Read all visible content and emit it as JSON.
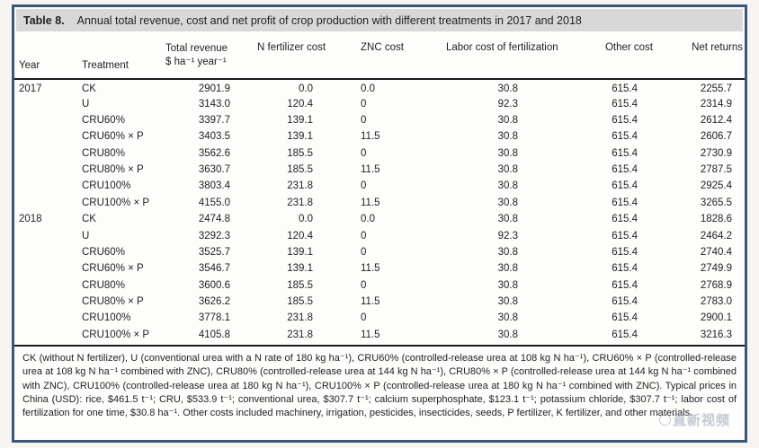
{
  "title": {
    "label": "Table 8.",
    "caption": "Annual total revenue, cost and net profit of crop production with different treatments in 2017 and 2018"
  },
  "table": {
    "columns": {
      "year": "Year",
      "treatment": "Treatment",
      "total_revenue": "Total revenue",
      "unit_line": "$ ha⁻¹ year⁻¹",
      "n_fertilizer_cost": "N fertilizer cost",
      "znc_cost": "ZNC cost",
      "labor_cost": "Labor cost of fertilization",
      "other_cost": "Other cost",
      "net_returns": "Net returns"
    },
    "rows": [
      {
        "year": "2017",
        "treatment": "CK",
        "total_revenue": "2901.9",
        "n_fertilizer_cost": "0.0",
        "znc_cost": "0.0",
        "labor_cost": "30.8",
        "other_cost": "615.4",
        "net_returns": "2255.7"
      },
      {
        "year": "",
        "treatment": "U",
        "total_revenue": "3143.0",
        "n_fertilizer_cost": "120.4",
        "znc_cost": "0",
        "labor_cost": "92.3",
        "other_cost": "615.4",
        "net_returns": "2314.9"
      },
      {
        "year": "",
        "treatment": "CRU60%",
        "total_revenue": "3397.7",
        "n_fertilizer_cost": "139.1",
        "znc_cost": "0",
        "labor_cost": "30.8",
        "other_cost": "615.4",
        "net_returns": "2612.4"
      },
      {
        "year": "",
        "treatment": "CRU60% × P",
        "total_revenue": "3403.5",
        "n_fertilizer_cost": "139.1",
        "znc_cost": "11.5",
        "labor_cost": "30.8",
        "other_cost": "615.4",
        "net_returns": "2606.7"
      },
      {
        "year": "",
        "treatment": "CRU80%",
        "total_revenue": "3562.6",
        "n_fertilizer_cost": "185.5",
        "znc_cost": "0",
        "labor_cost": "30.8",
        "other_cost": "615.4",
        "net_returns": "2730.9"
      },
      {
        "year": "",
        "treatment": "CRU80% × P",
        "total_revenue": "3630.7",
        "n_fertilizer_cost": "185.5",
        "znc_cost": "11.5",
        "labor_cost": "30.8",
        "other_cost": "615.4",
        "net_returns": "2787.5"
      },
      {
        "year": "",
        "treatment": "CRU100%",
        "total_revenue": "3803.4",
        "n_fertilizer_cost": "231.8",
        "znc_cost": "0",
        "labor_cost": "30.8",
        "other_cost": "615.4",
        "net_returns": "2925.4"
      },
      {
        "year": "",
        "treatment": "CRU100% × P",
        "total_revenue": "4155.0",
        "n_fertilizer_cost": "231.8",
        "znc_cost": "11.5",
        "labor_cost": "30.8",
        "other_cost": "615.4",
        "net_returns": "3265.5"
      },
      {
        "year": "2018",
        "treatment": "CK",
        "total_revenue": "2474.8",
        "n_fertilizer_cost": "0.0",
        "znc_cost": "0.0",
        "labor_cost": "30.8",
        "other_cost": "615.4",
        "net_returns": "1828.6"
      },
      {
        "year": "",
        "treatment": "U",
        "total_revenue": "3292.3",
        "n_fertilizer_cost": "120.4",
        "znc_cost": "0",
        "labor_cost": "92.3",
        "other_cost": "615.4",
        "net_returns": "2464.2"
      },
      {
        "year": "",
        "treatment": "CRU60%",
        "total_revenue": "3525.7",
        "n_fertilizer_cost": "139.1",
        "znc_cost": "0",
        "labor_cost": "30.8",
        "other_cost": "615.4",
        "net_returns": "2740.4"
      },
      {
        "year": "",
        "treatment": "CRU60% × P",
        "total_revenue": "3546.7",
        "n_fertilizer_cost": "139.1",
        "znc_cost": "11.5",
        "labor_cost": "30.8",
        "other_cost": "615.4",
        "net_returns": "2749.9"
      },
      {
        "year": "",
        "treatment": "CRU80%",
        "total_revenue": "3600.6",
        "n_fertilizer_cost": "185.5",
        "znc_cost": "0",
        "labor_cost": "30.8",
        "other_cost": "615.4",
        "net_returns": "2768.9"
      },
      {
        "year": "",
        "treatment": "CRU80% × P",
        "total_revenue": "3626.2",
        "n_fertilizer_cost": "185.5",
        "znc_cost": "11.5",
        "labor_cost": "30.8",
        "other_cost": "615.4",
        "net_returns": "2783.0"
      },
      {
        "year": "",
        "treatment": "CRU100%",
        "total_revenue": "3778.1",
        "n_fertilizer_cost": "231.8",
        "znc_cost": "0",
        "labor_cost": "30.8",
        "other_cost": "615.4",
        "net_returns": "2900.1"
      },
      {
        "year": "",
        "treatment": "CRU100% × P",
        "total_revenue": "4105.8",
        "n_fertilizer_cost": "231.8",
        "znc_cost": "11.5",
        "labor_cost": "30.8",
        "other_cost": "615.4",
        "net_returns": "3216.3"
      }
    ]
  },
  "footnote": "CK (without N fertilizer), U (conventional urea with a N rate of 180 kg ha⁻¹), CRU60% (controlled-release urea at 108 kg N ha⁻¹), CRU60% × P (controlled-release urea at 108 kg N ha⁻¹ combined with ZNC), CRU80% (controlled-release urea at 144 kg N ha⁻¹), CRU80% × P (controlled-release urea at 144 kg N ha⁻¹ combined with ZNC), CRU100% (controlled-release urea at 180 kg N ha⁻¹), CRU100% × P (controlled-release urea at 180 kg N ha⁻¹ combined with ZNC). Typical prices in China (USD): rice, $461.5 t⁻¹; CRU, $533.9 t⁻¹; conventional urea, $307.7 t⁻¹; calcium superphosphate, $123.1 t⁻¹; potassium chloride, $307.7 t⁻¹; labor cost of fertilization for one time, $30.8 ha⁻¹. Other costs included machinery, irrigation, pesticides, insecticides, seeds, P fertilizer, K fertilizer, and other materials.",
  "watermark": {
    "text": "直新视频"
  },
  "colors": {
    "frame_border": "#3a567a",
    "title_bar_bg": "#d8d8d8",
    "rule": "#1b1b1b",
    "text": "#1f1f1f",
    "page_bg": "#f6f5f1"
  }
}
